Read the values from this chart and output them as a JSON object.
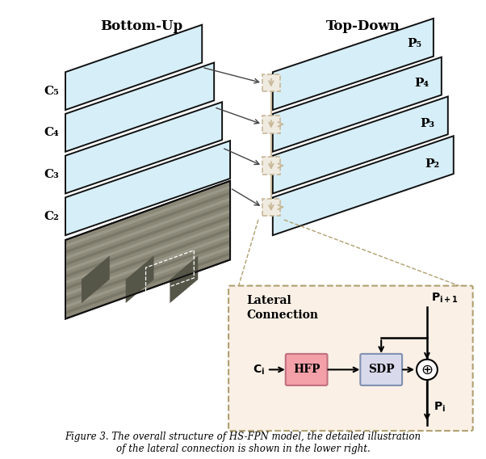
{
  "bottom_up_label": "Bottom-Up",
  "top_down_label": "Top-Down",
  "c_labels": [
    "C₅",
    "C₄",
    "C₃",
    "C₂"
  ],
  "p_labels": [
    "P₅",
    "P₄",
    "P₃",
    "P₂"
  ],
  "layer_face_color": "#D6EEF8",
  "layer_edge_color": "#111111",
  "lateral_bg": "#FAF0E6",
  "hfp_color": "#F4A0A8",
  "sdp_color": "#D8DAEC",
  "dashed_box_color": "#C8B898",
  "dashed_box_fill": "#F0EBE0",
  "arrow_fill_color": "#B8A878",
  "sum_circle_color": "#FFFFFF",
  "caption": "Figure 3. The overall structure of HS-FPN model, the detailed illustration\nof the lateral connection is shown in the lower right."
}
